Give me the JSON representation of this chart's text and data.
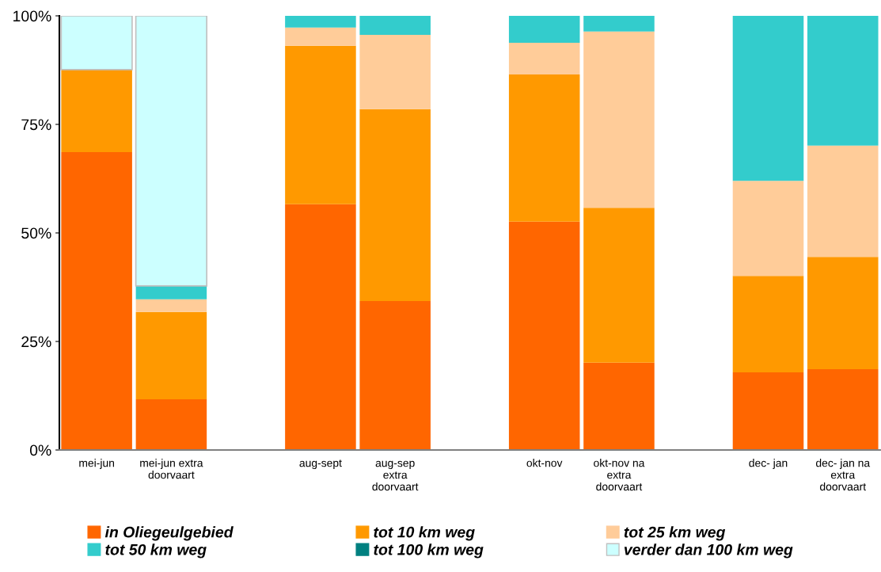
{
  "chart_data": {
    "type": "bar",
    "stacked": true,
    "categories": [
      "mei-jun",
      "mei-jun extra\ndoorvaart",
      null,
      "aug-sept",
      "aug-sep\nextra\ndoorvaart",
      null,
      "okt-nov",
      "okt-nov na\nextra\ndoorvaart",
      null,
      "dec- jan",
      "dec- jan na\nextra\ndoorvaart"
    ],
    "series": [
      {
        "name": "in Oliegeulgebied",
        "color": "#ff6600",
        "values": [
          68.6,
          11.7,
          null,
          56.6,
          34.3,
          null,
          52.6,
          20.1,
          null,
          17.9,
          18.6
        ]
      },
      {
        "name": "tot 10 km weg",
        "color": "#ff9900",
        "values": [
          19.0,
          20.1,
          null,
          36.5,
          44.2,
          null,
          33.9,
          35.7,
          null,
          22.2,
          25.9
        ]
      },
      {
        "name": "tot 25 km weg",
        "color": "#ffcc99",
        "values": [
          0,
          2.9,
          null,
          4.2,
          17.1,
          null,
          7.3,
          40.6,
          null,
          21.9,
          25.6
        ]
      },
      {
        "name": "tot 50 km weg",
        "color": "#33cccc",
        "values": [
          0,
          3.1,
          null,
          2.7,
          4.4,
          null,
          6.2,
          3.6,
          null,
          38.0,
          29.9
        ]
      },
      {
        "name": "tot 100 km weg",
        "color": "#008080",
        "values": [
          0,
          0,
          null,
          0,
          0,
          null,
          0,
          0,
          null,
          0,
          0
        ]
      },
      {
        "name": "verder dan 100 km weg",
        "color": "#ccffff",
        "values": [
          12.4,
          62.2,
          null,
          0,
          0,
          null,
          0,
          0,
          null,
          0,
          0
        ]
      }
    ],
    "ylim": [
      0,
      100
    ],
    "yticks": [
      {
        "value": 0,
        "label": "0%"
      },
      {
        "value": 25,
        "label": "25%"
      },
      {
        "value": 50,
        "label": "50%"
      },
      {
        "value": 75,
        "label": "75%"
      },
      {
        "value": 100,
        "label": "100%"
      }
    ],
    "grid": false,
    "legend": "bottom"
  }
}
